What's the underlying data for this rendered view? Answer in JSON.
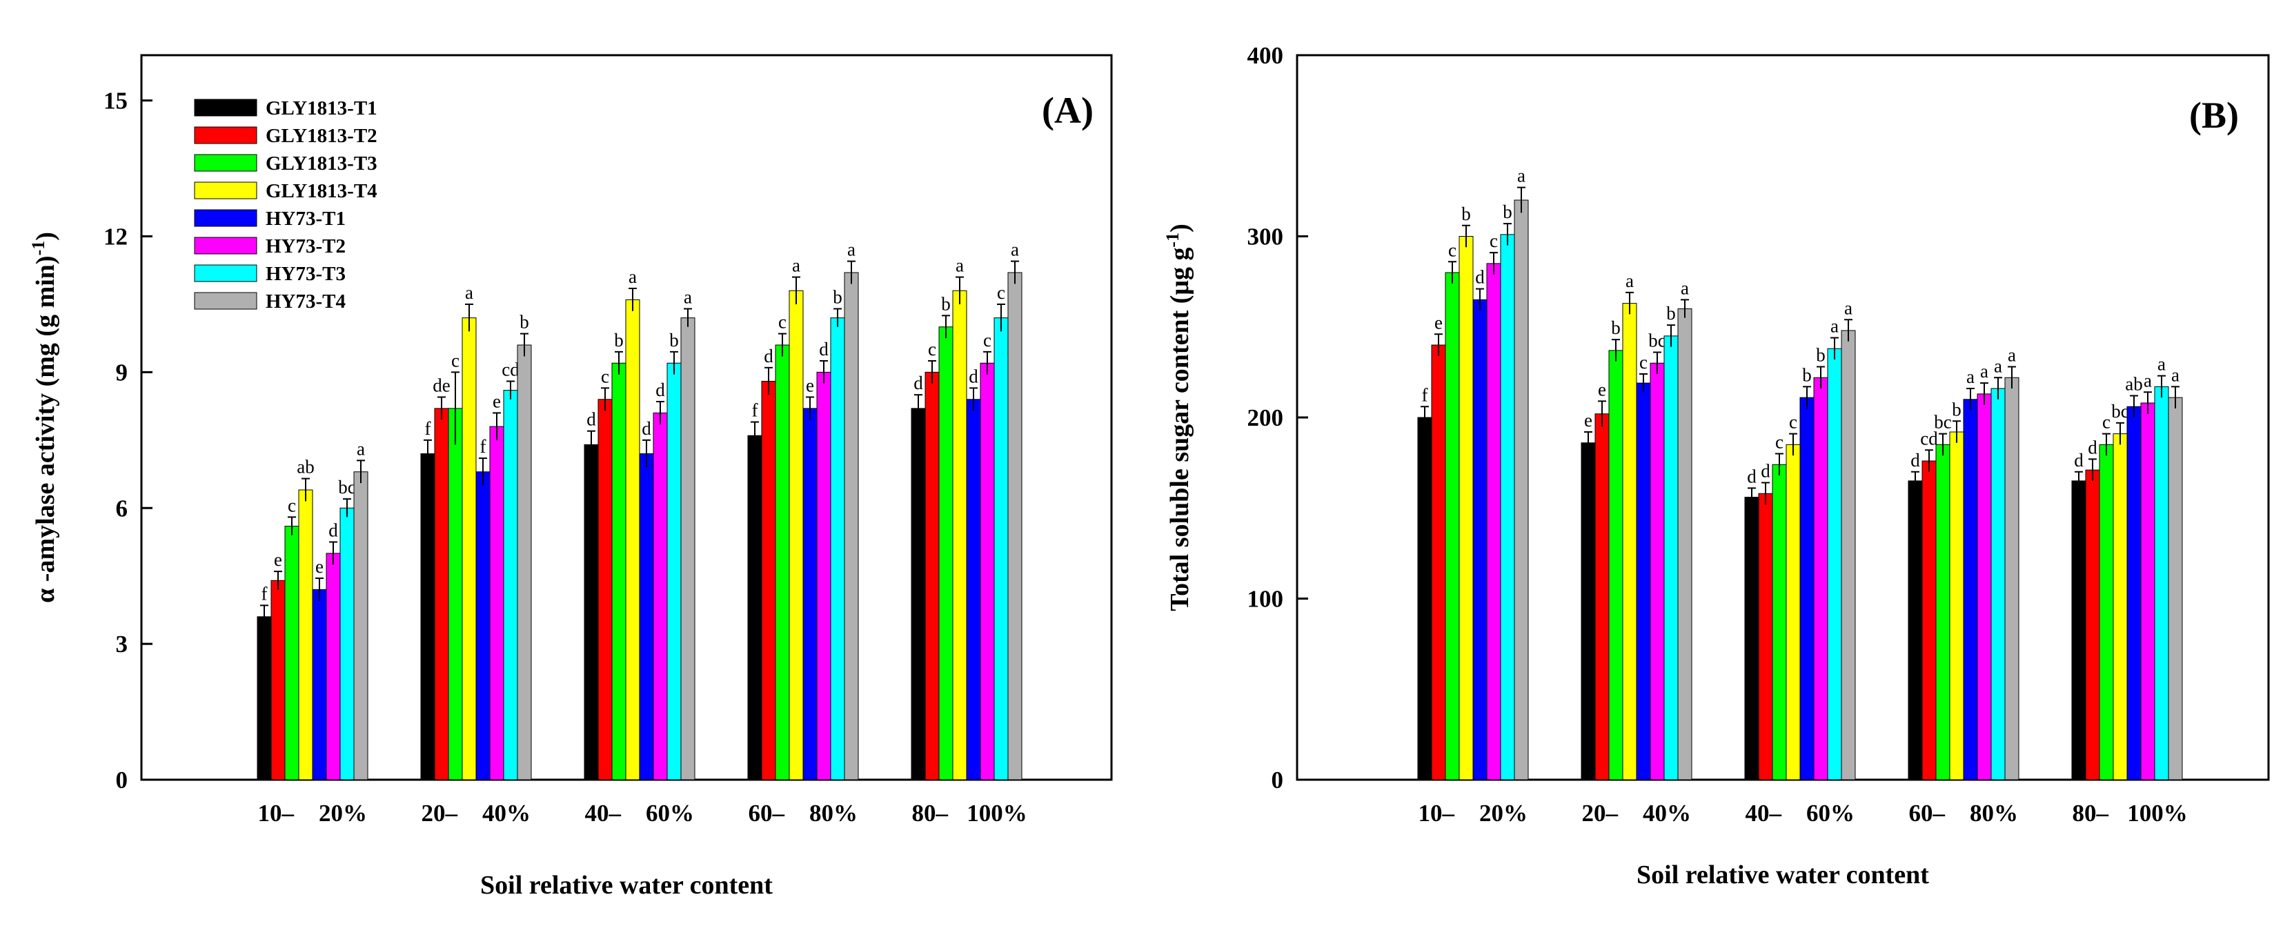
{
  "legend": {
    "entries": [
      "GLY1813-T1",
      "GLY1813-T2",
      "GLY1813-T3",
      "GLY1813-T4",
      "HY73-T1",
      "HY73-T2",
      "HY73-T3",
      "HY73-T4"
    ],
    "colors": [
      "#000000",
      "#ff0000",
      "#00ff00",
      "#ffff00",
      "#0000ff",
      "#ff00ff",
      "#00ffff",
      "#b0b0b0"
    ]
  },
  "chart_data": [
    {
      "type": "bar",
      "title": "(A)",
      "xlabel": "Soil relative water content",
      "ylabel": "α -amylase activity (mg (g min)",
      "ylabel_sup": "-1",
      "ylabel_tail": ")",
      "ylim": [
        0,
        16
      ],
      "yticks": [
        0,
        3,
        6,
        9,
        12,
        15
      ],
      "categories": [
        {
          "left": "10–",
          "right": "20%"
        },
        {
          "left": "20–",
          "right": "40%"
        },
        {
          "left": "40–",
          "right": "60%"
        },
        {
          "left": "60–",
          "right": "80%"
        },
        {
          "left": "80–",
          "right": "100%"
        }
      ],
      "series": [
        {
          "name": "GLY1813-T1",
          "values": [
            3.6,
            7.2,
            7.4,
            7.6,
            8.2
          ],
          "errors": [
            0.25,
            0.3,
            0.3,
            0.3,
            0.3
          ],
          "labels": [
            "f",
            "f",
            "d",
            "f",
            "d"
          ]
        },
        {
          "name": "GLY1813-T2",
          "values": [
            4.4,
            8.2,
            8.4,
            8.8,
            9.0
          ],
          "errors": [
            0.2,
            0.25,
            0.25,
            0.3,
            0.25
          ],
          "labels": [
            "e",
            "de",
            "c",
            "d",
            "c"
          ]
        },
        {
          "name": "GLY1813-T3",
          "values": [
            5.6,
            8.2,
            9.2,
            9.6,
            10.0
          ],
          "errors": [
            0.2,
            0.8,
            0.25,
            0.25,
            0.25
          ],
          "labels": [
            "c",
            "c",
            "b",
            "c",
            "b"
          ]
        },
        {
          "name": "GLY1813-T4",
          "values": [
            6.4,
            10.2,
            10.6,
            10.8,
            10.8
          ],
          "errors": [
            0.25,
            0.3,
            0.25,
            0.3,
            0.3
          ],
          "labels": [
            "ab",
            "a",
            "a",
            "a",
            "a"
          ]
        },
        {
          "name": "HY73-T1",
          "values": [
            4.2,
            6.8,
            7.2,
            8.2,
            8.4
          ],
          "errors": [
            0.25,
            0.3,
            0.3,
            0.25,
            0.25
          ],
          "labels": [
            "e",
            "f",
            "d",
            "e",
            "d"
          ]
        },
        {
          "name": "HY73-T2",
          "values": [
            5.0,
            7.8,
            8.1,
            9.0,
            9.2
          ],
          "errors": [
            0.25,
            0.3,
            0.25,
            0.25,
            0.25
          ],
          "labels": [
            "d",
            "e",
            "d",
            "d",
            "c"
          ]
        },
        {
          "name": "HY73-T3",
          "values": [
            6.0,
            8.6,
            9.2,
            10.2,
            10.2
          ],
          "errors": [
            0.2,
            0.2,
            0.25,
            0.2,
            0.3
          ],
          "labels": [
            "bc",
            "cd",
            "b",
            "b",
            "c"
          ]
        },
        {
          "name": "HY73-T4",
          "values": [
            6.8,
            9.6,
            10.2,
            11.2,
            11.2
          ],
          "errors": [
            0.25,
            0.25,
            0.2,
            0.25,
            0.25
          ],
          "labels": [
            "a",
            "b",
            "a",
            "a",
            "a"
          ]
        }
      ]
    },
    {
      "type": "bar",
      "title": "(B)",
      "xlabel": "Soil relative water content",
      "ylabel": "Total soluble sugar content (μg g",
      "ylabel_sup": "-1",
      "ylabel_tail": ")",
      "ylim": [
        0,
        400
      ],
      "yticks": [
        0,
        100,
        200,
        300,
        400
      ],
      "categories": [
        {
          "left": "10–",
          "right": "20%"
        },
        {
          "left": "20–",
          "right": "40%"
        },
        {
          "left": "40–",
          "right": "60%"
        },
        {
          "left": "60–",
          "right": "80%"
        },
        {
          "left": "80–",
          "right": "100%"
        }
      ],
      "series": [
        {
          "name": "GLY1813-T1",
          "values": [
            200,
            186,
            156,
            165,
            165
          ],
          "errors": [
            6,
            6,
            5,
            5,
            5
          ],
          "labels": [
            "f",
            "e",
            "d",
            "d",
            "d"
          ]
        },
        {
          "name": "GLY1813-T2",
          "values": [
            240,
            202,
            158,
            176,
            171
          ],
          "errors": [
            6,
            7,
            6,
            6,
            6
          ],
          "labels": [
            "e",
            "e",
            "d",
            "cd",
            "d"
          ]
        },
        {
          "name": "GLY1813-T3",
          "values": [
            280,
            237,
            174,
            185,
            185
          ],
          "errors": [
            6,
            6,
            6,
            6,
            6
          ],
          "labels": [
            "c",
            "b",
            "c",
            "bc",
            "c"
          ]
        },
        {
          "name": "GLY1813-T4",
          "values": [
            300,
            263,
            185,
            192,
            191
          ],
          "errors": [
            6,
            6,
            6,
            6,
            6
          ],
          "labels": [
            "b",
            "a",
            "c",
            "b",
            "bc"
          ]
        },
        {
          "name": "HY73-T1",
          "values": [
            265,
            219,
            211,
            210,
            206
          ],
          "errors": [
            6,
            5,
            6,
            6,
            6
          ],
          "labels": [
            "d",
            "c",
            "b",
            "a",
            "ab"
          ]
        },
        {
          "name": "HY73-T2",
          "values": [
            285,
            230,
            222,
            213,
            208
          ],
          "errors": [
            6,
            6,
            6,
            6,
            6
          ],
          "labels": [
            "c",
            "bc",
            "b",
            "a",
            "a"
          ]
        },
        {
          "name": "HY73-T3",
          "values": [
            301,
            245,
            238,
            216,
            217
          ],
          "errors": [
            6,
            6,
            6,
            6,
            6
          ],
          "labels": [
            "b",
            "b",
            "a",
            "a",
            "a"
          ]
        },
        {
          "name": "HY73-T4",
          "values": [
            320,
            260,
            248,
            222,
            211
          ],
          "errors": [
            7,
            5,
            6,
            6,
            6
          ],
          "labels": [
            "a",
            "a",
            "a",
            "a",
            "a"
          ]
        }
      ]
    }
  ]
}
